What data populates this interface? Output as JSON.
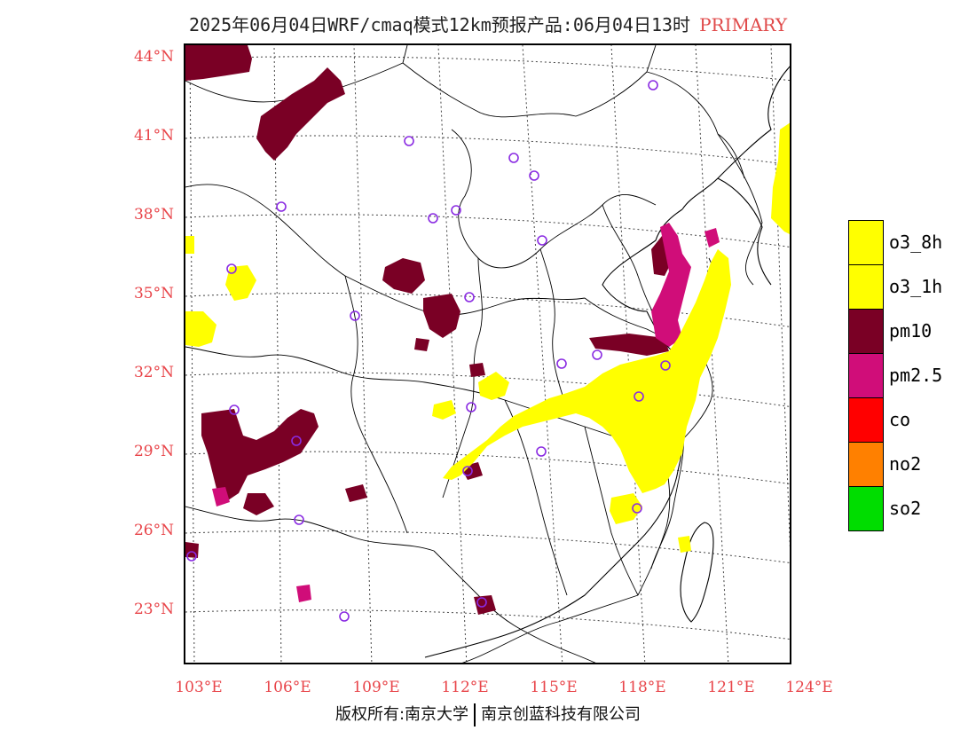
{
  "title": {
    "main": "2025年06月04日WRF/cmaq模式12km预报产品:06月04日13时",
    "tag": "PRIMARY"
  },
  "map": {
    "lat_labels": [
      "44°N",
      "41°N",
      "38°N",
      "35°N",
      "32°N",
      "29°N",
      "26°N",
      "23°N"
    ],
    "lon_labels": [
      "103°E",
      "106°E",
      "109°E",
      "112°E",
      "115°E",
      "118°E",
      "121°E",
      "124°E"
    ]
  },
  "legend": [
    {
      "label": "o3_8h",
      "color": "#ffff00"
    },
    {
      "label": "o3_1h",
      "color": "#ffff00"
    },
    {
      "label": "pm10",
      "color": "#7a0025"
    },
    {
      "label": "pm2.5",
      "color": "#d00d79"
    },
    {
      "label": "co",
      "color": "#ff0000"
    },
    {
      "label": "no2",
      "color": "#ff8000"
    },
    {
      "label": "so2",
      "color": "#00dd00"
    }
  ],
  "credit": {
    "left": "版权所有:南京大学",
    "right": "南京创蓝科技有限公司"
  },
  "colors": {
    "ozone": "#ffff00",
    "pm10": "#7a0025",
    "pm25": "#d00d79",
    "station_marker": "#8a2be2",
    "label_red": "#e8454a"
  }
}
